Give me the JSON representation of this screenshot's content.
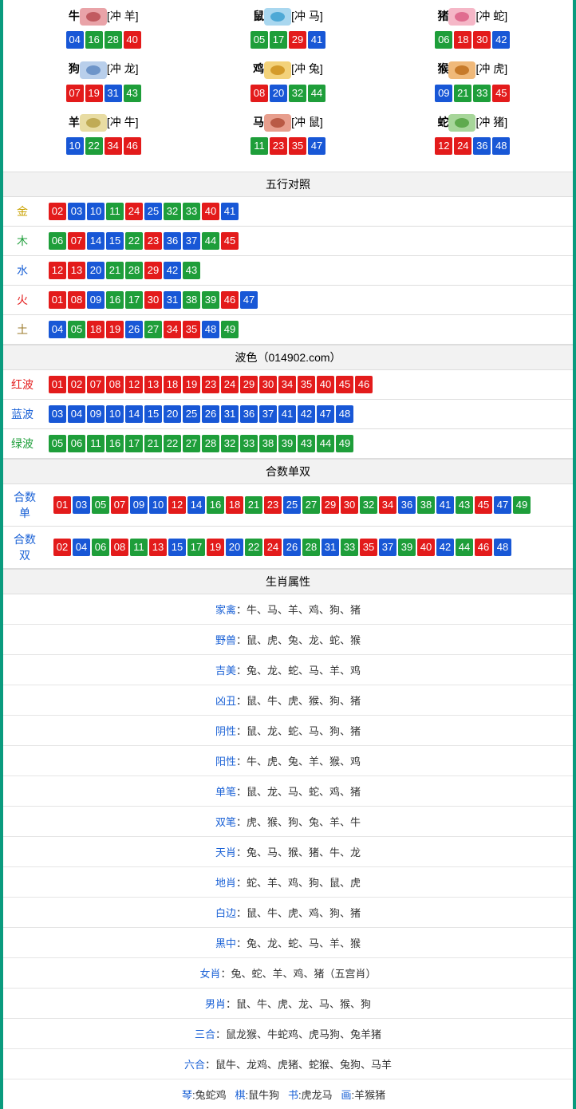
{
  "colors": {
    "border": "#0a9b7e",
    "red": "#e31b1b",
    "blue": "#1857d6",
    "green": "#1e9e3a"
  },
  "zodiac": [
    {
      "name": "牛",
      "icon_bg": "#e9a3a8",
      "icon_dot": "#c15a60",
      "clash": "[冲 羊]",
      "balls": [
        {
          "n": "04",
          "c": "blue"
        },
        {
          "n": "16",
          "c": "green"
        },
        {
          "n": "28",
          "c": "green"
        },
        {
          "n": "40",
          "c": "red"
        }
      ]
    },
    {
      "name": "鼠",
      "icon_bg": "#a9d7ef",
      "icon_dot": "#4ea9d6",
      "clash": "[冲 马]",
      "balls": [
        {
          "n": "05",
          "c": "green"
        },
        {
          "n": "17",
          "c": "green"
        },
        {
          "n": "29",
          "c": "red"
        },
        {
          "n": "41",
          "c": "blue"
        }
      ]
    },
    {
      "name": "猪",
      "icon_bg": "#f5b7c7",
      "icon_dot": "#e06d90",
      "clash": "[冲 蛇]",
      "balls": [
        {
          "n": "06",
          "c": "green"
        },
        {
          "n": "18",
          "c": "red"
        },
        {
          "n": "30",
          "c": "red"
        },
        {
          "n": "42",
          "c": "blue"
        }
      ]
    },
    {
      "name": "狗",
      "icon_bg": "#b9cfeb",
      "icon_dot": "#6e95c9",
      "clash": "[冲 龙]",
      "balls": [
        {
          "n": "07",
          "c": "red"
        },
        {
          "n": "19",
          "c": "red"
        },
        {
          "n": "31",
          "c": "blue"
        },
        {
          "n": "43",
          "c": "green"
        }
      ]
    },
    {
      "name": "鸡",
      "icon_bg": "#f3d27a",
      "icon_dot": "#d49b2a",
      "clash": "[冲 兔]",
      "balls": [
        {
          "n": "08",
          "c": "red"
        },
        {
          "n": "20",
          "c": "blue"
        },
        {
          "n": "32",
          "c": "green"
        },
        {
          "n": "44",
          "c": "green"
        }
      ]
    },
    {
      "name": "猴",
      "icon_bg": "#f0b97a",
      "icon_dot": "#c77a2a",
      "clash": "[冲 虎]",
      "balls": [
        {
          "n": "09",
          "c": "blue"
        },
        {
          "n": "21",
          "c": "green"
        },
        {
          "n": "33",
          "c": "green"
        },
        {
          "n": "45",
          "c": "red"
        }
      ]
    },
    {
      "name": "羊",
      "icon_bg": "#e8dca3",
      "icon_dot": "#c0ab55",
      "clash": "[冲 牛]",
      "balls": [
        {
          "n": "10",
          "c": "blue"
        },
        {
          "n": "22",
          "c": "green"
        },
        {
          "n": "34",
          "c": "red"
        },
        {
          "n": "46",
          "c": "red"
        }
      ]
    },
    {
      "name": "马",
      "icon_bg": "#e79e8d",
      "icon_dot": "#b95a45",
      "clash": "[冲 鼠]",
      "balls": [
        {
          "n": "11",
          "c": "green"
        },
        {
          "n": "23",
          "c": "red"
        },
        {
          "n": "35",
          "c": "red"
        },
        {
          "n": "47",
          "c": "blue"
        }
      ]
    },
    {
      "name": "蛇",
      "icon_bg": "#a7d69a",
      "icon_dot": "#5faa4e",
      "clash": "[冲 猪]",
      "balls": [
        {
          "n": "12",
          "c": "red"
        },
        {
          "n": "24",
          "c": "red"
        },
        {
          "n": "36",
          "c": "blue"
        },
        {
          "n": "48",
          "c": "blue"
        }
      ]
    }
  ],
  "wuxing": {
    "title": "五行对照",
    "rows": [
      {
        "label": "金",
        "label_color": "c-gold",
        "balls": [
          {
            "n": "02",
            "c": "red"
          },
          {
            "n": "03",
            "c": "blue"
          },
          {
            "n": "10",
            "c": "blue"
          },
          {
            "n": "11",
            "c": "green"
          },
          {
            "n": "24",
            "c": "red"
          },
          {
            "n": "25",
            "c": "blue"
          },
          {
            "n": "32",
            "c": "green"
          },
          {
            "n": "33",
            "c": "green"
          },
          {
            "n": "40",
            "c": "red"
          },
          {
            "n": "41",
            "c": "blue"
          }
        ]
      },
      {
        "label": "木",
        "label_color": "c-green",
        "balls": [
          {
            "n": "06",
            "c": "green"
          },
          {
            "n": "07",
            "c": "red"
          },
          {
            "n": "14",
            "c": "blue"
          },
          {
            "n": "15",
            "c": "blue"
          },
          {
            "n": "22",
            "c": "green"
          },
          {
            "n": "23",
            "c": "red"
          },
          {
            "n": "36",
            "c": "blue"
          },
          {
            "n": "37",
            "c": "blue"
          },
          {
            "n": "44",
            "c": "green"
          },
          {
            "n": "45",
            "c": "red"
          }
        ]
      },
      {
        "label": "水",
        "label_color": "c-blue",
        "balls": [
          {
            "n": "12",
            "c": "red"
          },
          {
            "n": "13",
            "c": "red"
          },
          {
            "n": "20",
            "c": "blue"
          },
          {
            "n": "21",
            "c": "green"
          },
          {
            "n": "28",
            "c": "green"
          },
          {
            "n": "29",
            "c": "red"
          },
          {
            "n": "42",
            "c": "blue"
          },
          {
            "n": "43",
            "c": "green"
          }
        ]
      },
      {
        "label": "火",
        "label_color": "c-red",
        "balls": [
          {
            "n": "01",
            "c": "red"
          },
          {
            "n": "08",
            "c": "red"
          },
          {
            "n": "09",
            "c": "blue"
          },
          {
            "n": "16",
            "c": "green"
          },
          {
            "n": "17",
            "c": "green"
          },
          {
            "n": "30",
            "c": "red"
          },
          {
            "n": "31",
            "c": "blue"
          },
          {
            "n": "38",
            "c": "green"
          },
          {
            "n": "39",
            "c": "green"
          },
          {
            "n": "46",
            "c": "red"
          },
          {
            "n": "47",
            "c": "blue"
          }
        ]
      },
      {
        "label": "土",
        "label_color": "c-brown",
        "balls": [
          {
            "n": "04",
            "c": "blue"
          },
          {
            "n": "05",
            "c": "green"
          },
          {
            "n": "18",
            "c": "red"
          },
          {
            "n": "19",
            "c": "red"
          },
          {
            "n": "26",
            "c": "blue"
          },
          {
            "n": "27",
            "c": "green"
          },
          {
            "n": "34",
            "c": "red"
          },
          {
            "n": "35",
            "c": "red"
          },
          {
            "n": "48",
            "c": "blue"
          },
          {
            "n": "49",
            "c": "green"
          }
        ]
      }
    ]
  },
  "bose": {
    "title": "波色（014902.com）",
    "rows": [
      {
        "label": "红波",
        "label_color": "c-red",
        "balls": [
          {
            "n": "01",
            "c": "red"
          },
          {
            "n": "02",
            "c": "red"
          },
          {
            "n": "07",
            "c": "red"
          },
          {
            "n": "08",
            "c": "red"
          },
          {
            "n": "12",
            "c": "red"
          },
          {
            "n": "13",
            "c": "red"
          },
          {
            "n": "18",
            "c": "red"
          },
          {
            "n": "19",
            "c": "red"
          },
          {
            "n": "23",
            "c": "red"
          },
          {
            "n": "24",
            "c": "red"
          },
          {
            "n": "29",
            "c": "red"
          },
          {
            "n": "30",
            "c": "red"
          },
          {
            "n": "34",
            "c": "red"
          },
          {
            "n": "35",
            "c": "red"
          },
          {
            "n": "40",
            "c": "red"
          },
          {
            "n": "45",
            "c": "red"
          },
          {
            "n": "46",
            "c": "red"
          }
        ]
      },
      {
        "label": "蓝波",
        "label_color": "c-blue",
        "balls": [
          {
            "n": "03",
            "c": "blue"
          },
          {
            "n": "04",
            "c": "blue"
          },
          {
            "n": "09",
            "c": "blue"
          },
          {
            "n": "10",
            "c": "blue"
          },
          {
            "n": "14",
            "c": "blue"
          },
          {
            "n": "15",
            "c": "blue"
          },
          {
            "n": "20",
            "c": "blue"
          },
          {
            "n": "25",
            "c": "blue"
          },
          {
            "n": "26",
            "c": "blue"
          },
          {
            "n": "31",
            "c": "blue"
          },
          {
            "n": "36",
            "c": "blue"
          },
          {
            "n": "37",
            "c": "blue"
          },
          {
            "n": "41",
            "c": "blue"
          },
          {
            "n": "42",
            "c": "blue"
          },
          {
            "n": "47",
            "c": "blue"
          },
          {
            "n": "48",
            "c": "blue"
          }
        ]
      },
      {
        "label": "绿波",
        "label_color": "c-green",
        "balls": [
          {
            "n": "05",
            "c": "green"
          },
          {
            "n": "06",
            "c": "green"
          },
          {
            "n": "11",
            "c": "green"
          },
          {
            "n": "16",
            "c": "green"
          },
          {
            "n": "17",
            "c": "green"
          },
          {
            "n": "21",
            "c": "green"
          },
          {
            "n": "22",
            "c": "green"
          },
          {
            "n": "27",
            "c": "green"
          },
          {
            "n": "28",
            "c": "green"
          },
          {
            "n": "32",
            "c": "green"
          },
          {
            "n": "33",
            "c": "green"
          },
          {
            "n": "38",
            "c": "green"
          },
          {
            "n": "39",
            "c": "green"
          },
          {
            "n": "43",
            "c": "green"
          },
          {
            "n": "44",
            "c": "green"
          },
          {
            "n": "49",
            "c": "green"
          }
        ]
      }
    ]
  },
  "heshu": {
    "title": "合数单双",
    "rows": [
      {
        "label": "合数单",
        "label_color": "c-blue",
        "balls": [
          {
            "n": "01",
            "c": "red"
          },
          {
            "n": "03",
            "c": "blue"
          },
          {
            "n": "05",
            "c": "green"
          },
          {
            "n": "07",
            "c": "red"
          },
          {
            "n": "09",
            "c": "blue"
          },
          {
            "n": "10",
            "c": "blue"
          },
          {
            "n": "12",
            "c": "red"
          },
          {
            "n": "14",
            "c": "blue"
          },
          {
            "n": "16",
            "c": "green"
          },
          {
            "n": "18",
            "c": "red"
          },
          {
            "n": "21",
            "c": "green"
          },
          {
            "n": "23",
            "c": "red"
          },
          {
            "n": "25",
            "c": "blue"
          },
          {
            "n": "27",
            "c": "green"
          },
          {
            "n": "29",
            "c": "red"
          },
          {
            "n": "30",
            "c": "red"
          },
          {
            "n": "32",
            "c": "green"
          },
          {
            "n": "34",
            "c": "red"
          },
          {
            "n": "36",
            "c": "blue"
          },
          {
            "n": "38",
            "c": "green"
          },
          {
            "n": "41",
            "c": "blue"
          },
          {
            "n": "43",
            "c": "green"
          },
          {
            "n": "45",
            "c": "red"
          },
          {
            "n": "47",
            "c": "blue"
          },
          {
            "n": "49",
            "c": "green"
          }
        ]
      },
      {
        "label": "合数双",
        "label_color": "c-blue",
        "balls": [
          {
            "n": "02",
            "c": "red"
          },
          {
            "n": "04",
            "c": "blue"
          },
          {
            "n": "06",
            "c": "green"
          },
          {
            "n": "08",
            "c": "red"
          },
          {
            "n": "11",
            "c": "green"
          },
          {
            "n": "13",
            "c": "red"
          },
          {
            "n": "15",
            "c": "blue"
          },
          {
            "n": "17",
            "c": "green"
          },
          {
            "n": "19",
            "c": "red"
          },
          {
            "n": "20",
            "c": "blue"
          },
          {
            "n": "22",
            "c": "green"
          },
          {
            "n": "24",
            "c": "red"
          },
          {
            "n": "26",
            "c": "blue"
          },
          {
            "n": "28",
            "c": "green"
          },
          {
            "n": "31",
            "c": "blue"
          },
          {
            "n": "33",
            "c": "green"
          },
          {
            "n": "35",
            "c": "red"
          },
          {
            "n": "37",
            "c": "blue"
          },
          {
            "n": "39",
            "c": "green"
          },
          {
            "n": "40",
            "c": "red"
          },
          {
            "n": "42",
            "c": "blue"
          },
          {
            "n": "44",
            "c": "green"
          },
          {
            "n": "46",
            "c": "red"
          },
          {
            "n": "48",
            "c": "blue"
          }
        ]
      }
    ]
  },
  "attrs": {
    "title": "生肖属性",
    "rows": [
      {
        "k": "家禽",
        "v": "：牛、马、羊、鸡、狗、猪"
      },
      {
        "k": "野兽",
        "v": "：鼠、虎、兔、龙、蛇、猴"
      },
      {
        "k": "吉美",
        "v": "：兔、龙、蛇、马、羊、鸡"
      },
      {
        "k": "凶丑",
        "v": "：鼠、牛、虎、猴、狗、猪"
      },
      {
        "k": "阴性",
        "v": "：鼠、龙、蛇、马、狗、猪"
      },
      {
        "k": "阳性",
        "v": "：牛、虎、兔、羊、猴、鸡"
      },
      {
        "k": "单笔",
        "v": "：鼠、龙、马、蛇、鸡、猪"
      },
      {
        "k": "双笔",
        "v": "：虎、猴、狗、兔、羊、牛"
      },
      {
        "k": "天肖",
        "v": "：兔、马、猴、猪、牛、龙"
      },
      {
        "k": "地肖",
        "v": "：蛇、羊、鸡、狗、鼠、虎"
      },
      {
        "k": "白边",
        "v": "：鼠、牛、虎、鸡、狗、猪"
      },
      {
        "k": "黑中",
        "v": "：兔、龙、蛇、马、羊、猴"
      },
      {
        "k": "女肖",
        "v": "：兔、蛇、羊、鸡、猪（五宫肖）"
      },
      {
        "k": "男肖",
        "v": "：鼠、牛、虎、龙、马、猴、狗"
      },
      {
        "k": "三合",
        "v": "：鼠龙猴、牛蛇鸡、虎马狗、兔羊猪"
      },
      {
        "k": "六合",
        "v": "：鼠牛、龙鸡、虎猪、蛇猴、兔狗、马羊"
      }
    ],
    "footer": {
      "parts": [
        {
          "k": "琴",
          "v": ":兔蛇鸡"
        },
        {
          "k": "棋",
          "v": ":鼠牛狗"
        },
        {
          "k": "书",
          "v": ":虎龙马"
        },
        {
          "k": "画",
          "v": ":羊猴猪"
        }
      ]
    }
  }
}
